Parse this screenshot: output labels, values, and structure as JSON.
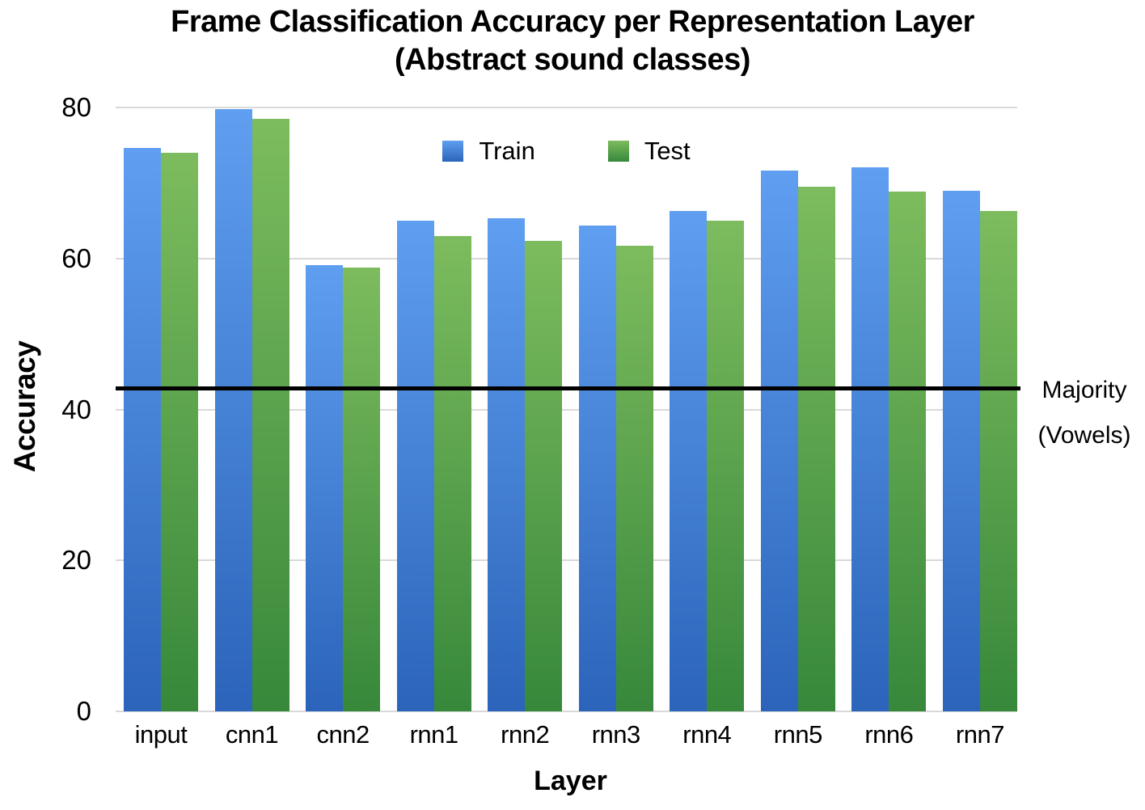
{
  "title": {
    "line1": "Frame Classification Accuracy per Representation Layer",
    "line2": "(Abstract sound classes)"
  },
  "chart_data": {
    "type": "bar",
    "categories": [
      "input",
      "cnn1",
      "cnn2",
      "rnn1",
      "rnn2",
      "rnn3",
      "rnn4",
      "rnn5",
      "rnn6",
      "rnn7"
    ],
    "series": [
      {
        "name": "Train",
        "color_top": "#5f9ef0",
        "color_bottom": "#2b64ba",
        "values": [
          74.6,
          79.8,
          59.1,
          65.0,
          65.3,
          64.4,
          66.3,
          71.7,
          72.1,
          69.0
        ]
      },
      {
        "name": "Test",
        "color_top": "#7dbc5e",
        "color_bottom": "#37883b",
        "values": [
          74.0,
          78.5,
          58.8,
          63.0,
          62.3,
          61.7,
          65.0,
          69.5,
          68.9,
          66.3
        ]
      }
    ],
    "xlabel": "Layer",
    "ylabel": "Accuracy",
    "ylim": [
      0,
      80
    ],
    "y_ticks": [
      0,
      20,
      40,
      60,
      80
    ],
    "grid": true,
    "legend_position": "top-center",
    "gridline_color": "#d9d9d9",
    "annotation": {
      "label_line1": "Majority",
      "label_line2": "(Vowels)",
      "value": 42.8,
      "color": "#000000"
    }
  }
}
